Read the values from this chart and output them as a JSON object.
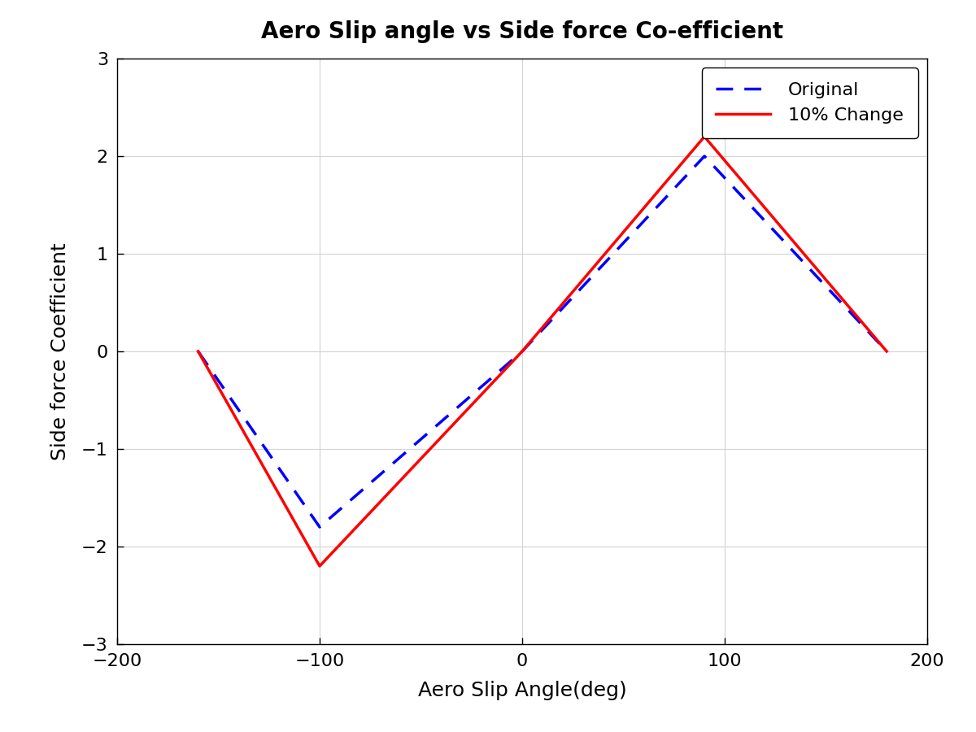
{
  "title": "Aero Slip angle vs Side force Co-efficient",
  "xlabel": "Aero Slip Angle(deg)",
  "ylabel": "Side force Coefficient",
  "xlim": [
    -200,
    200
  ],
  "ylim": [
    -3,
    3
  ],
  "xticks": [
    -200,
    -100,
    0,
    100,
    200
  ],
  "yticks": [
    -3,
    -2,
    -1,
    0,
    1,
    2,
    3
  ],
  "original_x": [
    -160,
    -100,
    0,
    90,
    180
  ],
  "original_y": [
    0,
    -1.8,
    0,
    2.0,
    0
  ],
  "change10_x": [
    -160,
    -100,
    0,
    90,
    180
  ],
  "change10_y": [
    0,
    -2.2,
    0,
    2.2,
    0
  ],
  "original_color": "#0000FF",
  "change10_color": "#FF0000",
  "original_label": "Original",
  "change10_label": "10% Change",
  "legend_loc": "upper right",
  "grid": true,
  "title_fontsize": 20,
  "label_fontsize": 18,
  "tick_fontsize": 16,
  "legend_fontsize": 16,
  "line_width": 2.5,
  "bg_color": "#FFFFFF"
}
